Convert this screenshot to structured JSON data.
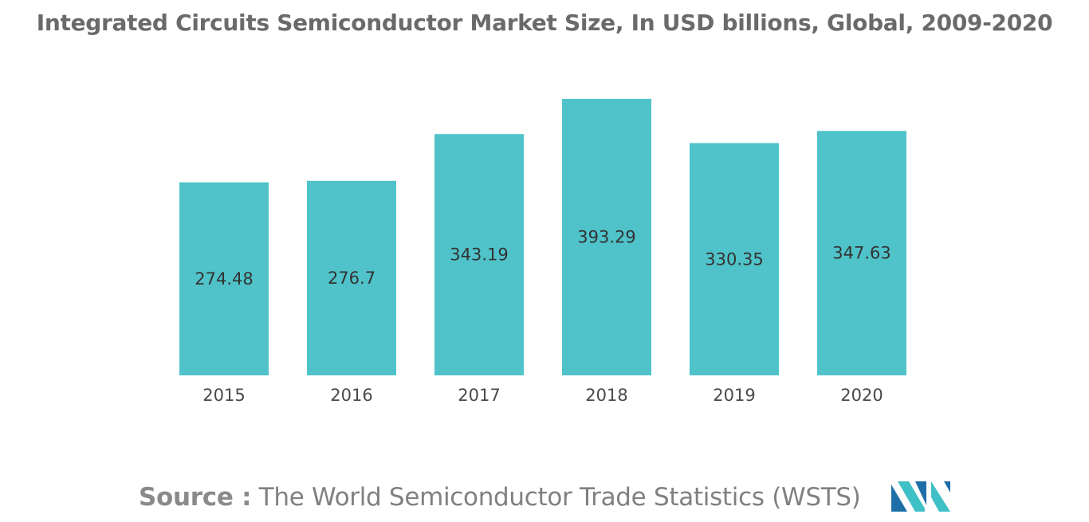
{
  "chart_data": {
    "type": "bar",
    "title": "Integrated Circuits Semiconductor Market Size, In USD billions, Global, 2009-2020",
    "categories": [
      "2015",
      "2016",
      "2017",
      "2018",
      "2019",
      "2020"
    ],
    "values": [
      274.48,
      276.7,
      343.19,
      393.29,
      330.35,
      347.63
    ],
    "value_labels": [
      "274.48",
      "276.7",
      "343.19",
      "393.29",
      "330.35",
      "347.63"
    ],
    "xlabel": "",
    "ylabel": "",
    "ylim": [
      0,
      393.29
    ],
    "grid": false,
    "bar_color": "#4fc3c9",
    "legend": "none"
  },
  "source": {
    "label": "Source :",
    "text": "The World Semiconductor Trade Statistics (WSTS)"
  },
  "logo": {
    "icon": "mordor-intelligence-logo-icon",
    "colors": [
      "#1e6fa8",
      "#3fbfc6"
    ]
  }
}
